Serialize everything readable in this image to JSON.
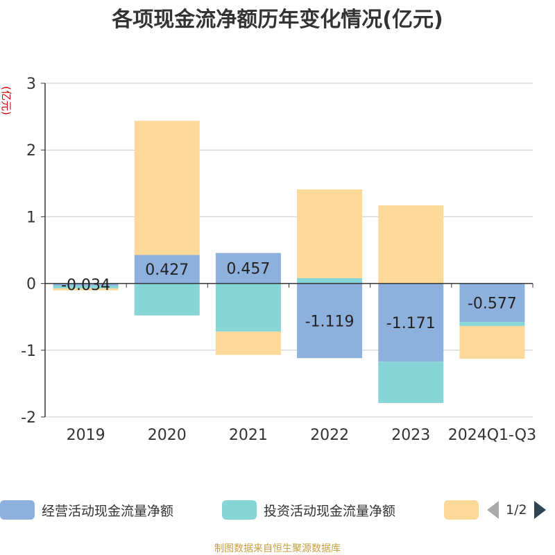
{
  "chart_data": {
    "type": "bar",
    "stacked": true,
    "title": "各项现金流净额历年变化情况(亿元)",
    "ylabel": "(亿元)",
    "xlabel": "",
    "categories": [
      "2019",
      "2020",
      "2021",
      "2022",
      "2023",
      "2024Q1-Q3"
    ],
    "ylim": [
      -2,
      3
    ],
    "yticks": [
      -2,
      -1,
      0,
      1,
      2,
      3
    ],
    "grid": true,
    "series": [
      {
        "name": "经营活动现金流量净额",
        "color": "#8eb0dc",
        "values": [
          -0.034,
          0.427,
          0.457,
          -1.119,
          -1.171,
          -0.577
        ],
        "labels": [
          "-0.034",
          "0.427",
          "0.457",
          "-1.119",
          "-1.171",
          "-0.577"
        ]
      },
      {
        "name": "投资活动现金流量净额",
        "color": "#86d5d7",
        "values": [
          -0.04,
          -0.48,
          -0.72,
          0.08,
          -0.62,
          -0.06
        ]
      },
      {
        "name": "",
        "color": "#fcd899",
        "values": [
          -0.03,
          2.01,
          -0.35,
          1.33,
          1.17,
          -0.49
        ]
      }
    ],
    "legend_position": "bottom"
  },
  "legend": {
    "items": [
      {
        "label": "经营活动现金流量净额",
        "color": "#8eb0dc"
      },
      {
        "label": "投资活动现金流量净额",
        "color": "#86d5d7"
      },
      {
        "label": "",
        "color": "#fcd899"
      }
    ],
    "page": "1/2"
  },
  "footer": {
    "source": "制图数据来自恒生聚源数据库"
  }
}
